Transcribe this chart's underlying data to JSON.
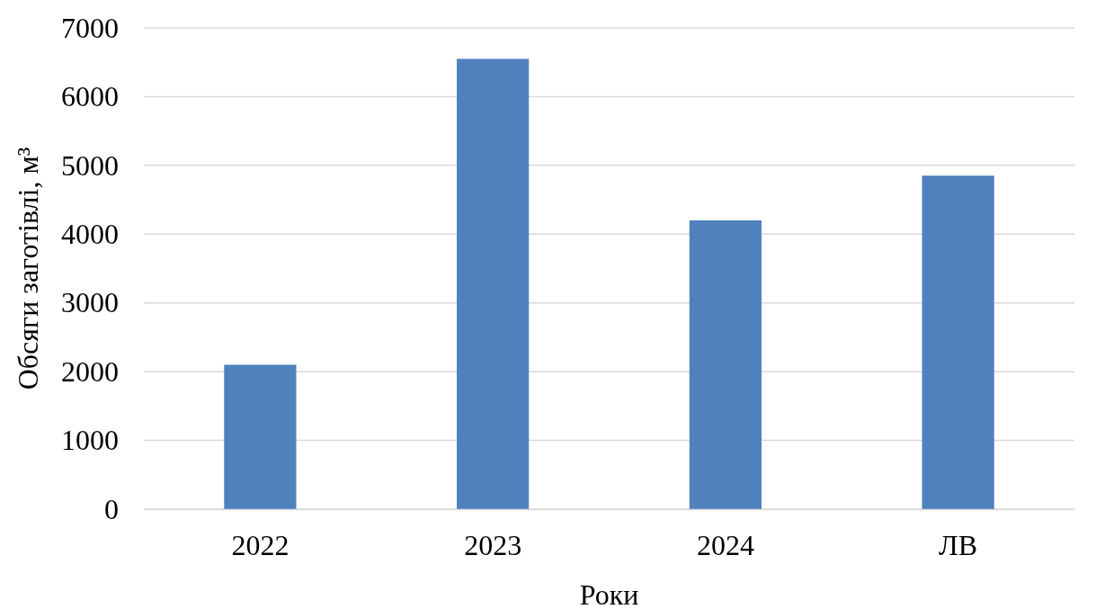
{
  "chart_data": {
    "type": "bar",
    "xlabel": "Роки",
    "ylabel": "Обсяги заготівлі, м³",
    "categories": [
      "2022",
      "2023",
      "2024",
      "ЛВ"
    ],
    "values": [
      2100,
      6550,
      4200,
      4850
    ],
    "color": "#4f81bd",
    "ylim": [
      0,
      7000
    ],
    "yticks": [
      0,
      1000,
      2000,
      3000,
      4000,
      5000,
      6000,
      7000
    ],
    "grid": "y"
  }
}
